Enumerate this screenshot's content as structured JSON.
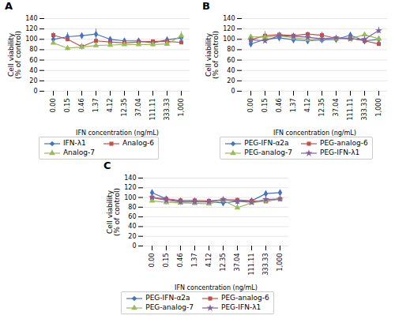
{
  "chart_data": [
    {
      "type": "line",
      "title": "A",
      "categories": [
        "0.00",
        "0.15",
        "0.46",
        "1.37",
        "4.12",
        "12.35",
        "37.04",
        "111.11",
        "333.33",
        "1,000"
      ],
      "series": [
        {
          "name": "IFN-λ1",
          "color": "#4472c4",
          "marker": "diamond",
          "values": [
            100,
            105,
            107,
            110,
            100,
            97,
            97,
            93,
            99,
            103
          ],
          "errors": [
            3,
            8,
            4,
            10,
            3,
            3,
            4,
            4,
            4,
            5
          ]
        },
        {
          "name": "Analog-6",
          "color": "#c0504d",
          "marker": "square",
          "values": [
            108,
            100,
            86,
            97,
            95,
            93,
            95,
            96,
            96,
            94
          ],
          "errors": [
            5,
            4,
            6,
            5,
            3,
            3,
            3,
            3,
            4,
            4
          ]
        },
        {
          "name": "Analog-7",
          "color": "#9bbb59",
          "marker": "triangle",
          "values": [
            93,
            83,
            85,
            88,
            89,
            90,
            90,
            90,
            91,
            107
          ],
          "errors": [
            3,
            5,
            5,
            4,
            3,
            3,
            3,
            3,
            3,
            8
          ]
        }
      ],
      "xlabel": "IFN concentration (ng/mL)",
      "ylabel": "Cell viability\n(% of control)",
      "ylim": [
        0,
        140
      ],
      "yticks": [
        0,
        20,
        40,
        60,
        80,
        100,
        120,
        140
      ],
      "grid": true,
      "legend": "bottom"
    },
    {
      "type": "line",
      "title": "B",
      "categories": [
        "0.00",
        "0.15",
        "0.46",
        "1.37",
        "4.12",
        "12.35",
        "37.04",
        "111.11",
        "333.33",
        "1,000"
      ],
      "series": [
        {
          "name": "PEG-IFN-α2a",
          "color": "#4472c4",
          "marker": "diamond",
          "values": [
            91,
            100,
            103,
            99,
            97,
            99,
            100,
            108,
            97,
            100
          ],
          "errors": [
            3,
            4,
            4,
            4,
            3,
            3,
            4,
            6,
            4,
            4
          ]
        },
        {
          "name": "PEG-analog-6",
          "color": "#c0504d",
          "marker": "square",
          "values": [
            99,
            107,
            109,
            107,
            110,
            108,
            102,
            102,
            97,
            91
          ],
          "errors": [
            4,
            8,
            5,
            5,
            4,
            6,
            4,
            4,
            5,
            4
          ]
        },
        {
          "name": "PEG-analog-7",
          "color": "#9bbb59",
          "marker": "triangle",
          "values": [
            105,
            104,
            107,
            103,
            100,
            100,
            101,
            101,
            109,
            101
          ],
          "errors": [
            4,
            4,
            6,
            5,
            5,
            5,
            4,
            4,
            5,
            5
          ]
        },
        {
          "name": "PEG-IFN-λ1",
          "color": "#8064a2",
          "marker": "star",
          "values": [
            99,
            97,
            107,
            106,
            104,
            101,
            103,
            101,
            100,
            117
          ],
          "errors": [
            4,
            4,
            5,
            5,
            3,
            4,
            4,
            4,
            4,
            6
          ]
        }
      ],
      "xlabel": "IFN concentration (ng/mL)",
      "ylabel": "Cell viability\n(% of control)",
      "ylim": [
        0,
        140
      ],
      "yticks": [
        0,
        20,
        40,
        60,
        80,
        100,
        120,
        140
      ],
      "grid": true,
      "legend": "bottom"
    },
    {
      "type": "line",
      "title": "C",
      "categories": [
        "0.00",
        "0.15",
        "0.46",
        "1.37",
        "4.12",
        "12.35",
        "37.04",
        "111.11",
        "333.33",
        "1,000"
      ],
      "series": [
        {
          "name": "PEG-IFN-α2a",
          "color": "#4472c4",
          "marker": "diamond",
          "values": [
            110,
            97,
            92,
            92,
            91,
            89,
            92,
            93,
            108,
            110
          ],
          "errors": [
            4,
            4,
            5,
            4,
            3,
            4,
            3,
            3,
            5,
            5
          ]
        },
        {
          "name": "PEG-analog-6",
          "color": "#c0504d",
          "marker": "square",
          "values": [
            100,
            97,
            94,
            94,
            93,
            95,
            95,
            93,
            92,
            97
          ],
          "errors": [
            4,
            4,
            5,
            5,
            4,
            4,
            3,
            4,
            4,
            5
          ]
        },
        {
          "name": "PEG-analog-7",
          "color": "#9bbb59",
          "marker": "triangle",
          "values": [
            93,
            90,
            89,
            88,
            87,
            94,
            79,
            89,
            93,
            97
          ],
          "errors": [
            4,
            5,
            5,
            5,
            4,
            6,
            4,
            4,
            5,
            5
          ]
        },
        {
          "name": "PEG-IFN-λ1",
          "color": "#8064a2",
          "marker": "star",
          "values": [
            100,
            94,
            91,
            91,
            91,
            96,
            92,
            90,
            96,
            97
          ],
          "errors": [
            4,
            4,
            5,
            4,
            4,
            4,
            4,
            4,
            5,
            5
          ]
        }
      ],
      "xlabel": "IFN concentration (ng/mL)",
      "ylabel": "Cell viability\n(% of control)",
      "ylim": [
        0,
        140
      ],
      "yticks": [
        0,
        20,
        40,
        60,
        80,
        100,
        120,
        140
      ],
      "grid": true,
      "legend": "bottom"
    }
  ]
}
